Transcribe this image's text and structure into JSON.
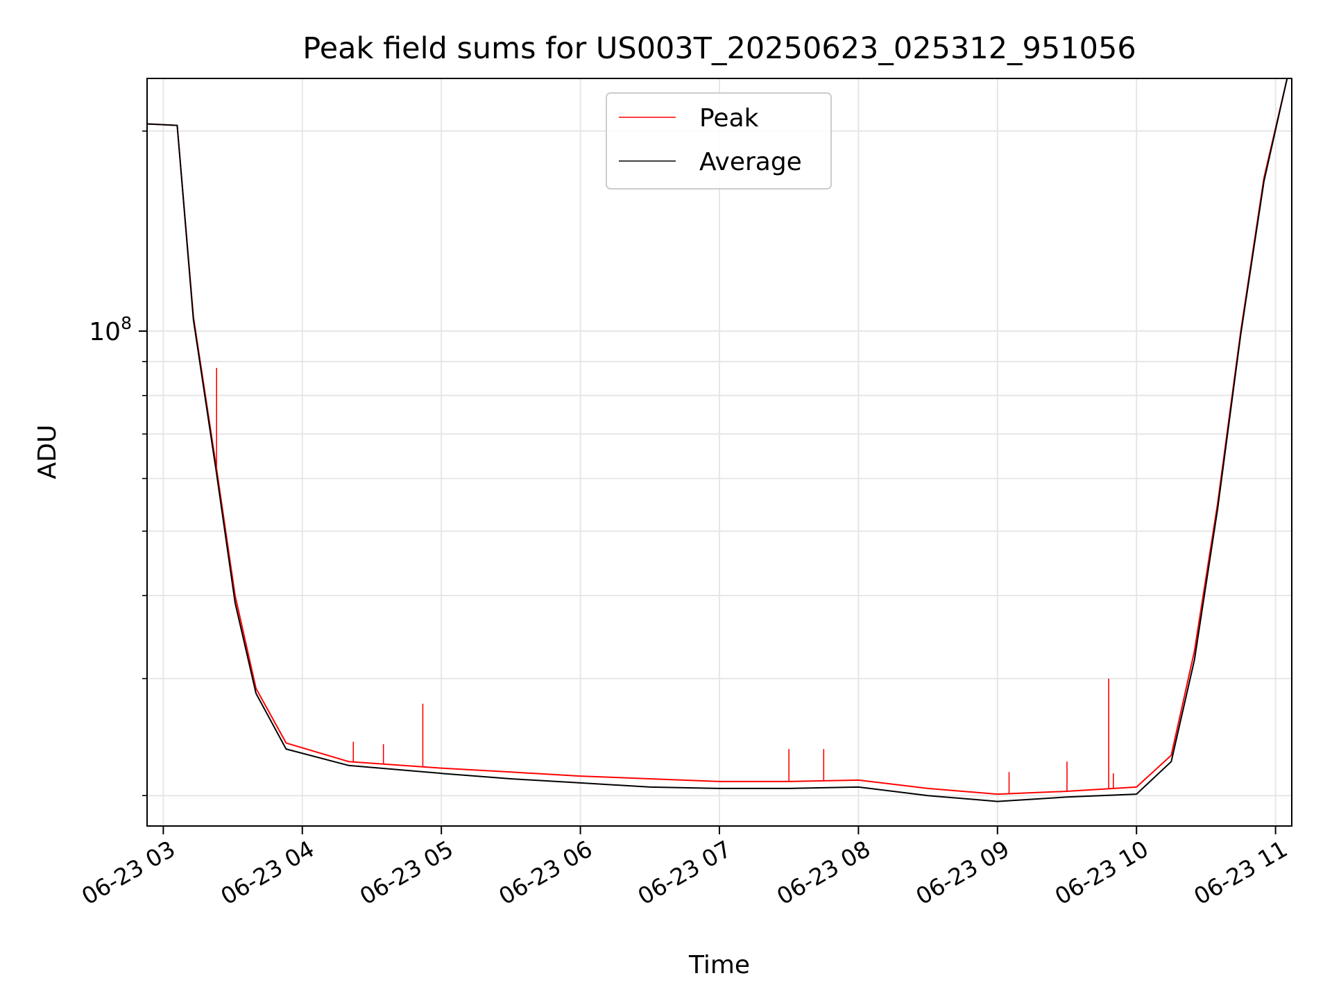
{
  "chart_data": {
    "type": "line",
    "title": "Peak field sums for US003T_20250623_025312_951056",
    "xlabel": "Time",
    "ylabel": "ADU",
    "y_scale": "log",
    "grid": true,
    "legend_position": "upper center",
    "x_range": [
      "2025-06-23 02:53",
      "2025-06-23 11:07"
    ],
    "y_range": [
      18000000,
      240000000
    ],
    "x_ticks": [
      {
        "t": "2025-06-23 03:00",
        "label": "06-23 03"
      },
      {
        "t": "2025-06-23 04:00",
        "label": "06-23 04"
      },
      {
        "t": "2025-06-23 05:00",
        "label": "06-23 05"
      },
      {
        "t": "2025-06-23 06:00",
        "label": "06-23 06"
      },
      {
        "t": "2025-06-23 07:00",
        "label": "06-23 07"
      },
      {
        "t": "2025-06-23 08:00",
        "label": "06-23 08"
      },
      {
        "t": "2025-06-23 09:00",
        "label": "06-23 09"
      },
      {
        "t": "2025-06-23 10:00",
        "label": "06-23 10"
      },
      {
        "t": "2025-06-23 11:00",
        "label": "06-23 11"
      }
    ],
    "y_major_ticks": [
      {
        "value": 100000000,
        "base": "10",
        "exp": "8"
      }
    ],
    "y_minor_ticks": [
      20000000,
      30000000,
      40000000,
      50000000,
      60000000,
      70000000,
      80000000,
      90000000,
      200000000
    ],
    "series": [
      {
        "name": "Peak",
        "color": "#ff0000",
        "points": [
          [
            "2025-06-23 02:53",
            205000000
          ],
          [
            "2025-06-23 03:06",
            204000000
          ],
          [
            "2025-06-23 03:13",
            105000000
          ],
          [
            "2025-06-23 03:23",
            62000000
          ],
          [
            "2025-06-23 03:31",
            40000000
          ],
          [
            "2025-06-23 03:40",
            29000000
          ],
          [
            "2025-06-23 03:53",
            24000000
          ],
          [
            "2025-06-23 04:20",
            22500000
          ],
          [
            "2025-06-23 05:00",
            22000000
          ],
          [
            "2025-06-23 05:30",
            21700000
          ],
          [
            "2025-06-23 06:00",
            21400000
          ],
          [
            "2025-06-23 06:30",
            21200000
          ],
          [
            "2025-06-23 07:00",
            21000000
          ],
          [
            "2025-06-23 07:30",
            21000000
          ],
          [
            "2025-06-23 08:00",
            21100000
          ],
          [
            "2025-06-23 08:30",
            20500000
          ],
          [
            "2025-06-23 09:00",
            20100000
          ],
          [
            "2025-06-23 09:30",
            20300000
          ],
          [
            "2025-06-23 10:00",
            20600000
          ],
          [
            "2025-06-23 10:15",
            23000000
          ],
          [
            "2025-06-23 10:25",
            33000000
          ],
          [
            "2025-06-23 10:35",
            55000000
          ],
          [
            "2025-06-23 10:45",
            100000000
          ],
          [
            "2025-06-23 10:55",
            170000000
          ],
          [
            "2025-06-23 11:05",
            240000000
          ]
        ],
        "spikes": [
          [
            "2025-06-23 03:23",
            88000000
          ],
          [
            "2025-06-23 04:22",
            24100000
          ],
          [
            "2025-06-23 04:35",
            23900000
          ],
          [
            "2025-06-23 04:52",
            27500000
          ],
          [
            "2025-06-23 07:30",
            23500000
          ],
          [
            "2025-06-23 07:45",
            23500000
          ],
          [
            "2025-06-23 09:05",
            21700000
          ],
          [
            "2025-06-23 09:30",
            22500000
          ],
          [
            "2025-06-23 09:50",
            21600000
          ],
          [
            "2025-06-23 09:48",
            30000000
          ]
        ]
      },
      {
        "name": "Average",
        "color": "#000000",
        "points": [
          [
            "2025-06-23 02:53",
            205000000
          ],
          [
            "2025-06-23 03:06",
            204000000
          ],
          [
            "2025-06-23 03:13",
            104000000
          ],
          [
            "2025-06-23 03:23",
            61000000
          ],
          [
            "2025-06-23 03:31",
            39000000
          ],
          [
            "2025-06-23 03:40",
            28500000
          ],
          [
            "2025-06-23 03:53",
            23500000
          ],
          [
            "2025-06-23 04:20",
            22200000
          ],
          [
            "2025-06-23 05:00",
            21600000
          ],
          [
            "2025-06-23 05:30",
            21200000
          ],
          [
            "2025-06-23 06:00",
            20900000
          ],
          [
            "2025-06-23 06:30",
            20600000
          ],
          [
            "2025-06-23 07:00",
            20500000
          ],
          [
            "2025-06-23 07:30",
            20500000
          ],
          [
            "2025-06-23 08:00",
            20600000
          ],
          [
            "2025-06-23 08:30",
            20000000
          ],
          [
            "2025-06-23 09:00",
            19600000
          ],
          [
            "2025-06-23 09:30",
            19900000
          ],
          [
            "2025-06-23 10:00",
            20100000
          ],
          [
            "2025-06-23 10:15",
            22500000
          ],
          [
            "2025-06-23 10:25",
            32000000
          ],
          [
            "2025-06-23 10:35",
            54000000
          ],
          [
            "2025-06-23 10:45",
            99000000
          ],
          [
            "2025-06-23 10:55",
            168000000
          ],
          [
            "2025-06-23 11:05",
            240000000
          ]
        ]
      }
    ]
  }
}
